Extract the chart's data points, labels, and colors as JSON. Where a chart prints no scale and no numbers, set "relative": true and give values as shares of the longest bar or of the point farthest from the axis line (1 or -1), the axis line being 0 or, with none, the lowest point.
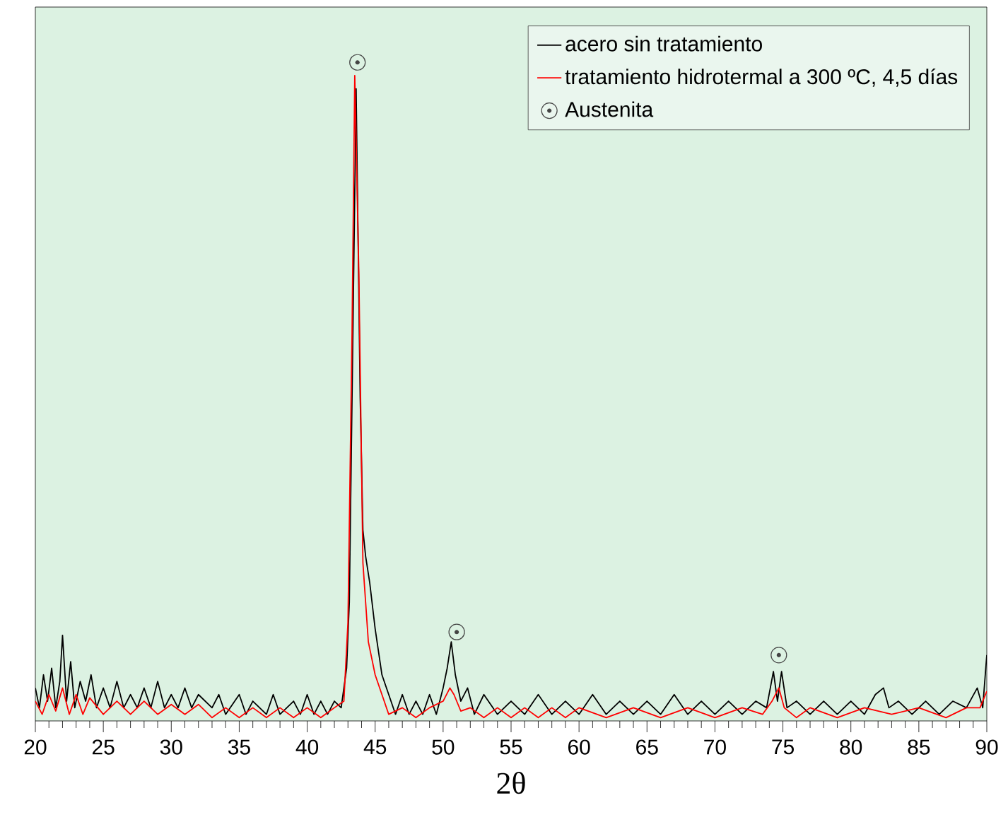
{
  "chart_data": {
    "type": "line",
    "relative": true,
    "xlabel": "2θ",
    "xlim": [
      20,
      90
    ],
    "xticks": [
      20,
      25,
      30,
      35,
      40,
      45,
      50,
      55,
      60,
      65,
      70,
      75,
      80,
      85,
      90
    ],
    "legend": "top right",
    "grid": false,
    "series": [
      {
        "name": "acero sin tratamiento",
        "color": "#000000",
        "marker": "none",
        "x": [
          20,
          20.3,
          20.6,
          20.9,
          21.2,
          21.5,
          21.8,
          22.0,
          22.3,
          22.6,
          22.9,
          23.3,
          23.7,
          24.1,
          24.5,
          25,
          25.5,
          26,
          26.5,
          27,
          27.5,
          28,
          28.5,
          29,
          29.5,
          30,
          30.5,
          31,
          31.5,
          32,
          33,
          33.5,
          34,
          35,
          35.5,
          36,
          37,
          37.5,
          38,
          39,
          39.5,
          40,
          40.5,
          41,
          41.5,
          42,
          42.5,
          42.9,
          43.1,
          43.3,
          43.6,
          43.9,
          44.1,
          44.3,
          44.6,
          45,
          45.5,
          46,
          46.5,
          47,
          47.5,
          48,
          48.5,
          49,
          49.5,
          50,
          50.3,
          50.6,
          50.9,
          51.3,
          51.8,
          52.3,
          53,
          54,
          55,
          56,
          57,
          58,
          59,
          60,
          61,
          62,
          63,
          64,
          65,
          66,
          67,
          68,
          69,
          70,
          71,
          72,
          73,
          73.8,
          74.3,
          74.6,
          74.9,
          75.3,
          76,
          77,
          78,
          79,
          80,
          81,
          81.8,
          82.4,
          82.8,
          83.5,
          84.5,
          85.5,
          86.5,
          87.5,
          88.5,
          89.3,
          89.7,
          90
        ],
        "values": [
          0.05,
          0.02,
          0.07,
          0.03,
          0.08,
          0.02,
          0.06,
          0.13,
          0.03,
          0.09,
          0.02,
          0.06,
          0.03,
          0.07,
          0.02,
          0.05,
          0.02,
          0.06,
          0.02,
          0.04,
          0.02,
          0.05,
          0.02,
          0.06,
          0.02,
          0.04,
          0.02,
          0.05,
          0.02,
          0.04,
          0.02,
          0.04,
          0.01,
          0.04,
          0.01,
          0.03,
          0.01,
          0.04,
          0.01,
          0.03,
          0.01,
          0.04,
          0.01,
          0.03,
          0.01,
          0.03,
          0.02,
          0.08,
          0.18,
          0.49,
          0.96,
          0.49,
          0.29,
          0.25,
          0.21,
          0.14,
          0.07,
          0.04,
          0.01,
          0.04,
          0.01,
          0.03,
          0.01,
          0.04,
          0.01,
          0.05,
          0.08,
          0.12,
          0.07,
          0.03,
          0.05,
          0.01,
          0.04,
          0.01,
          0.03,
          0.01,
          0.04,
          0.01,
          0.03,
          0.01,
          0.04,
          0.01,
          0.03,
          0.01,
          0.03,
          0.01,
          0.04,
          0.01,
          0.03,
          0.01,
          0.03,
          0.01,
          0.03,
          0.02,
          0.075,
          0.03,
          0.075,
          0.02,
          0.03,
          0.01,
          0.03,
          0.01,
          0.03,
          0.01,
          0.04,
          0.05,
          0.02,
          0.03,
          0.01,
          0.03,
          0.01,
          0.03,
          0.02,
          0.05,
          0.02,
          0.1
        ]
      },
      {
        "name": "tratamiento hidrotermal a 300 ºC, 4,5 días",
        "color": "#ff0000",
        "marker": "none",
        "x": [
          20,
          20.5,
          21,
          21.5,
          22,
          22.5,
          23,
          23.5,
          24,
          25,
          26,
          27,
          28,
          29,
          30,
          31,
          32,
          33,
          34,
          35,
          36,
          37,
          38,
          39,
          40,
          41,
          42,
          42.7,
          43.0,
          43.3,
          43.5,
          43.8,
          44.1,
          44.5,
          45,
          45.5,
          46,
          47,
          48,
          49,
          50,
          50.5,
          50.8,
          51.3,
          52,
          53,
          54,
          55,
          56,
          57,
          58,
          59,
          60,
          62,
          64,
          66,
          68,
          70,
          72,
          73.5,
          74.2,
          74.7,
          75.1,
          76,
          77,
          79,
          81,
          83,
          85,
          87,
          88.5,
          89.5,
          90
        ],
        "values": [
          0.03,
          0.01,
          0.04,
          0.015,
          0.05,
          0.01,
          0.04,
          0.01,
          0.035,
          0.01,
          0.03,
          0.01,
          0.03,
          0.01,
          0.025,
          0.01,
          0.025,
          0.005,
          0.02,
          0.005,
          0.02,
          0.005,
          0.02,
          0.005,
          0.02,
          0.005,
          0.02,
          0.03,
          0.15,
          0.59,
          0.98,
          0.68,
          0.24,
          0.12,
          0.07,
          0.04,
          0.01,
          0.02,
          0.005,
          0.02,
          0.03,
          0.05,
          0.04,
          0.015,
          0.02,
          0.005,
          0.02,
          0.005,
          0.02,
          0.005,
          0.02,
          0.005,
          0.02,
          0.005,
          0.02,
          0.005,
          0.02,
          0.005,
          0.02,
          0.01,
          0.03,
          0.05,
          0.02,
          0.005,
          0.02,
          0.005,
          0.02,
          0.01,
          0.02,
          0.005,
          0.02,
          0.02,
          0.045
        ]
      },
      {
        "name": "Austenita",
        "type": "scatter",
        "color": "#444444",
        "marker": "circle",
        "x": [
          43.7,
          51.0,
          74.7
        ],
        "values": [
          1.0,
          0.135,
          0.1
        ]
      }
    ]
  }
}
